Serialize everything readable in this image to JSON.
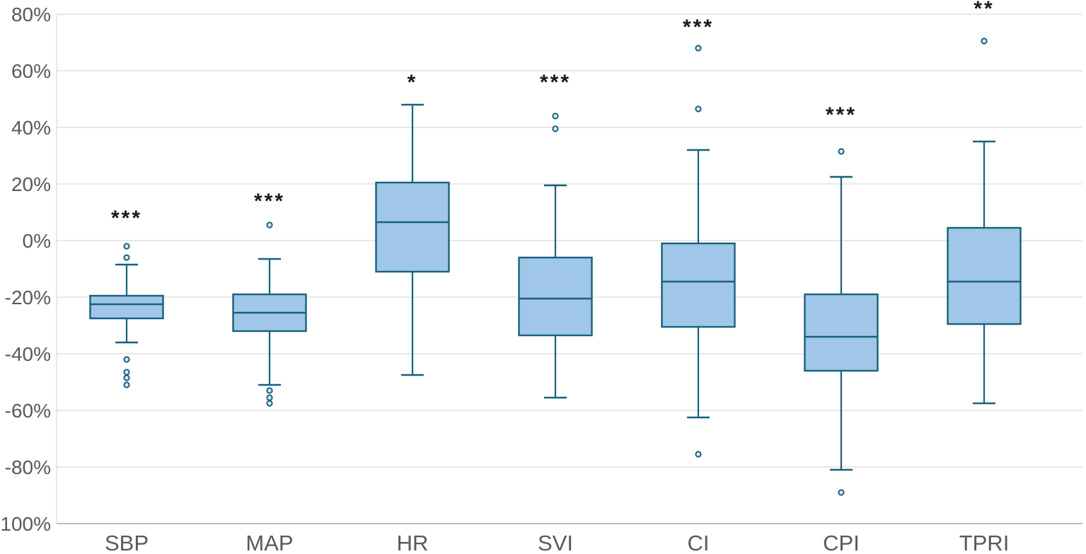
{
  "chart_data": {
    "type": "boxplot",
    "title": "",
    "xlabel": "",
    "ylabel": "",
    "unit": "%",
    "ylim": [
      -100,
      80
    ],
    "grid": "horizontal",
    "legend": "none",
    "y_ticks": [
      80,
      60,
      40,
      20,
      0,
      -20,
      -40,
      -60,
      -80,
      -100
    ],
    "y_tick_labels": [
      "80%",
      "60%",
      "40%",
      "20%",
      "0%",
      "-20%",
      "-40%",
      "-60%",
      "-80%",
      "-100%"
    ],
    "categories": [
      "SBP",
      "MAP",
      "HR",
      "SVI",
      "CI",
      "CPI",
      "TPRI"
    ],
    "series": [
      {
        "name": "SBP",
        "whisker_low": -36,
        "q1": -27.5,
        "median": -22.5,
        "q3": -19.5,
        "whisker_high": -8.5,
        "outliers": [
          -2,
          -6,
          -42,
          -46.5,
          -48.5,
          -51
        ],
        "significance": "***",
        "significance_y": 9
      },
      {
        "name": "MAP",
        "whisker_low": -51,
        "q1": -32,
        "median": -25.5,
        "q3": -19,
        "whisker_high": -6.5,
        "outliers": [
          5.5,
          -53,
          -55.5,
          -57.5
        ],
        "significance": "***",
        "significance_y": 15
      },
      {
        "name": "HR",
        "whisker_low": -47.5,
        "q1": -11,
        "median": 6.5,
        "q3": 20.5,
        "whisker_high": 48,
        "outliers": [],
        "significance": "*",
        "significance_y": 57
      },
      {
        "name": "SVI",
        "whisker_low": -55.5,
        "q1": -33.5,
        "median": -20.5,
        "q3": -6,
        "whisker_high": 19.5,
        "outliers": [
          44,
          39.5
        ],
        "significance": "***",
        "significance_y": 57
      },
      {
        "name": "CI",
        "whisker_low": -62.5,
        "q1": -30.5,
        "median": -14.5,
        "q3": -1,
        "whisker_high": 32,
        "outliers": [
          68,
          46.5,
          -75.5
        ],
        "significance": "***",
        "significance_y": 76.5
      },
      {
        "name": "CPI",
        "whisker_low": -81,
        "q1": -46,
        "median": -34,
        "q3": -19,
        "whisker_high": 22.5,
        "outliers": [
          31.5,
          -89
        ],
        "significance": "***",
        "significance_y": 45.5
      },
      {
        "name": "TPRI",
        "whisker_low": -57.5,
        "q1": -29.5,
        "median": -14.5,
        "q3": 4.5,
        "whisker_high": 35,
        "outliers": [
          70.5
        ],
        "significance": "**",
        "significance_y": 83
      }
    ],
    "colors": {
      "box_fill": "#A0C6E8",
      "box_stroke": "#17617E",
      "outlier_fill": "#DCEBF7",
      "grid_line": "#D9D9D9",
      "axis_line": "#A6A6A6",
      "tick_label": "#595959",
      "significance_text": "#1A1A1A",
      "background": "#FFFFFF"
    }
  }
}
